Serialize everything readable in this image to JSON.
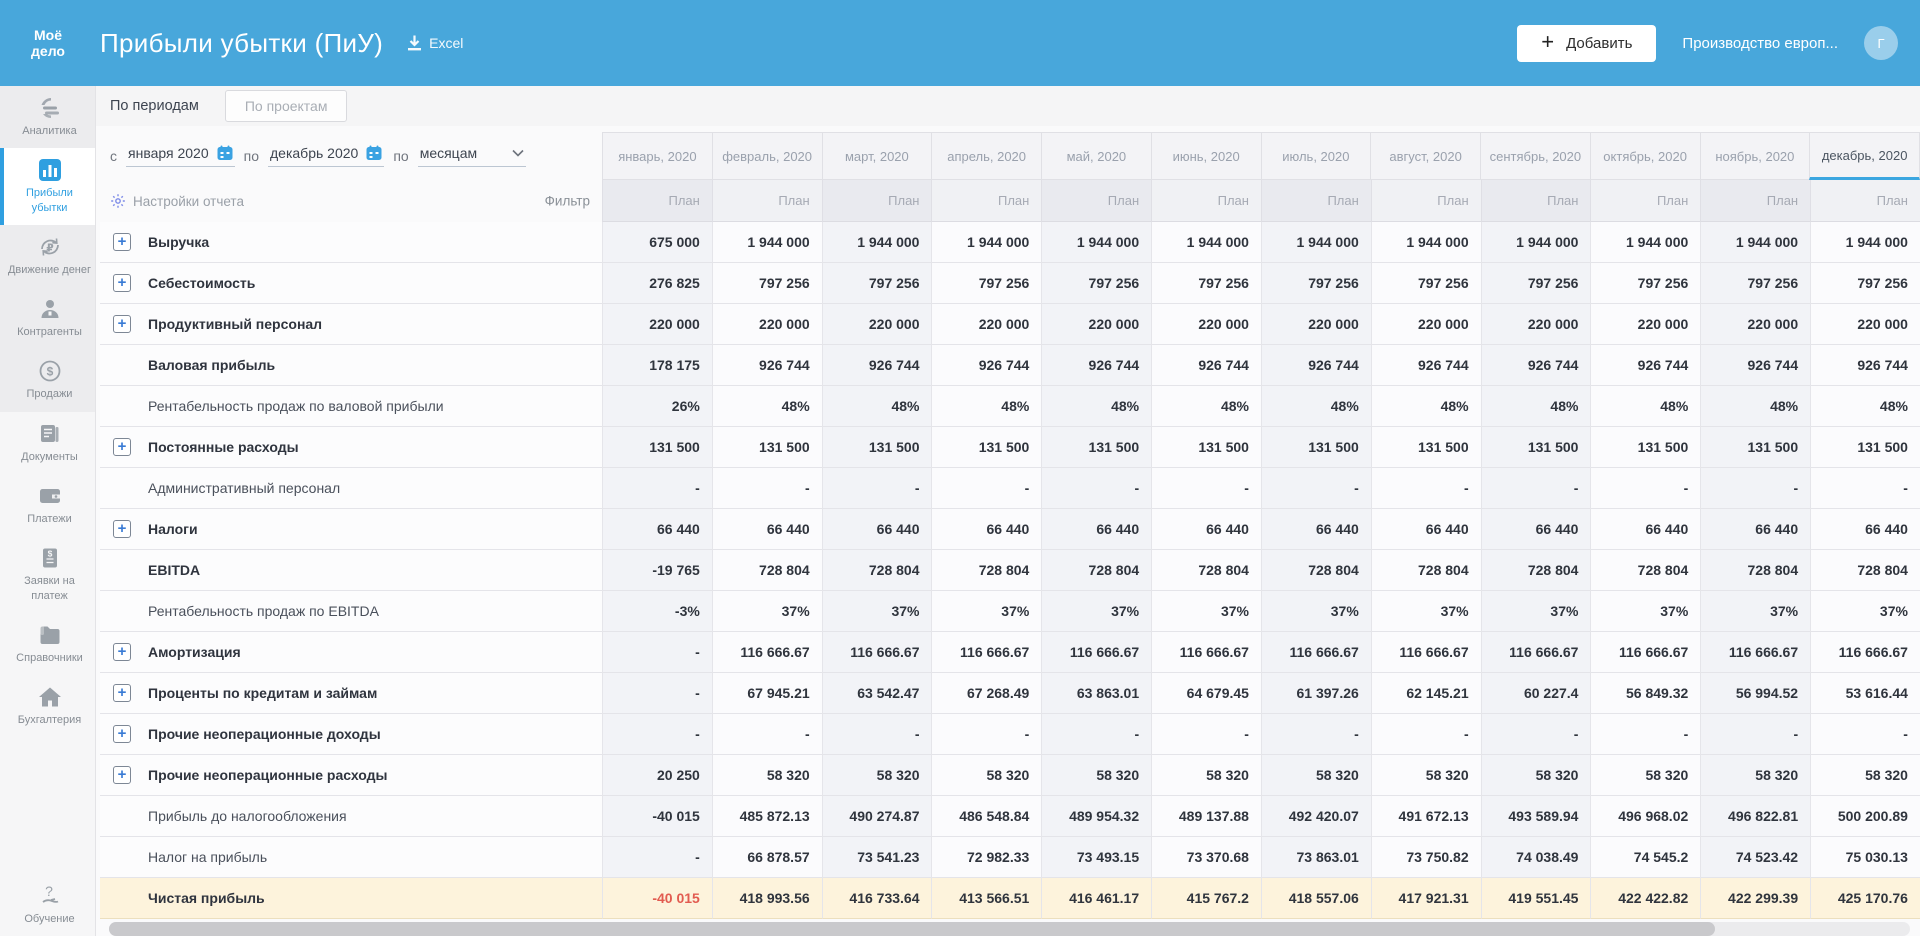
{
  "colors": {
    "header_blue": "#48a7db",
    "active_blue": "#2f9fe0",
    "selected_month_underline": "#3ba6e0",
    "negative_red": "#e25b50",
    "highlight_row_bg": "#fdf3dc"
  },
  "header": {
    "logo_line1": "Моё",
    "logo_line2": "дело",
    "title": "Прибыли убытки (ПиУ)",
    "excel_label": "Excel",
    "add_button_label": "Добавить",
    "company": "Производство европ...",
    "avatar_letter": "Г"
  },
  "sidebar": {
    "items": [
      {
        "id": "analytics",
        "label": "Аналитика",
        "icon": "analytics-icon",
        "group": 1,
        "active": false
      },
      {
        "id": "profit-loss",
        "label": "Прибыли убытки",
        "icon": "profit-loss-icon",
        "group": 1,
        "active": true
      },
      {
        "id": "cash-flow",
        "label": "Движение денег",
        "icon": "cash-flow-icon",
        "group": 1,
        "active": false
      },
      {
        "id": "contractors",
        "label": "Контрагенты",
        "icon": "contractors-icon",
        "group": 1,
        "active": false
      },
      {
        "id": "sales",
        "label": "Продажи",
        "icon": "sales-icon",
        "group": 1,
        "active": false
      },
      {
        "id": "documents",
        "label": "Документы",
        "icon": "documents-icon",
        "group": 2,
        "active": false
      },
      {
        "id": "payments",
        "label": "Платежи",
        "icon": "payments-icon",
        "group": 2,
        "active": false
      },
      {
        "id": "payment-requests",
        "label": "Заявки на платеж",
        "icon": "payment-request-icon",
        "group": 2,
        "active": false
      },
      {
        "id": "directories",
        "label": "Справочники",
        "icon": "directories-icon",
        "group": 2,
        "active": false
      },
      {
        "id": "accounting",
        "label": "Бухгалтерия",
        "icon": "accounting-icon",
        "group": 2,
        "active": false
      },
      {
        "id": "education",
        "label": "Обучение",
        "icon": "education-icon",
        "group": 3,
        "active": false
      }
    ]
  },
  "tabs": {
    "periods": "По периодам",
    "projects": "По проектам"
  },
  "filters": {
    "from_label": "с",
    "from_value": "января 2020",
    "to_label": "по",
    "to_value": "декабрь 2020",
    "group_label": "по",
    "group_value": "месяцам",
    "settings_label": "Настройки отчета",
    "filter_label": "Фильтр"
  },
  "table": {
    "plan_label": "План",
    "months": [
      "январь, 2020",
      "февраль, 2020",
      "март, 2020",
      "апрель, 2020",
      "май, 2020",
      "июнь, 2020",
      "июль, 2020",
      "август, 2020",
      "сентябрь, 2020",
      "октябрь, 2020",
      "ноябрь, 2020",
      "декабрь, 2020"
    ],
    "selected_month_index": 11,
    "rows": [
      {
        "label": "Выручка",
        "expandable": true,
        "bold": true,
        "highlight": false,
        "values": [
          "675 000",
          "1 944 000",
          "1 944 000",
          "1 944 000",
          "1 944 000",
          "1 944 000",
          "1 944 000",
          "1 944 000",
          "1 944 000",
          "1 944 000",
          "1 944 000",
          "1 944 000"
        ]
      },
      {
        "label": "Себестоимость",
        "expandable": true,
        "bold": true,
        "highlight": false,
        "values": [
          "276 825",
          "797 256",
          "797 256",
          "797 256",
          "797 256",
          "797 256",
          "797 256",
          "797 256",
          "797 256",
          "797 256",
          "797 256",
          "797 256"
        ]
      },
      {
        "label": "Продуктивный персонал",
        "expandable": true,
        "bold": true,
        "highlight": false,
        "values": [
          "220 000",
          "220 000",
          "220 000",
          "220 000",
          "220 000",
          "220 000",
          "220 000",
          "220 000",
          "220 000",
          "220 000",
          "220 000",
          "220 000"
        ]
      },
      {
        "label": "Валовая прибыль",
        "expandable": false,
        "bold": true,
        "highlight": false,
        "values": [
          "178 175",
          "926 744",
          "926 744",
          "926 744",
          "926 744",
          "926 744",
          "926 744",
          "926 744",
          "926 744",
          "926 744",
          "926 744",
          "926 744"
        ]
      },
      {
        "label": "Рентабельность продаж по валовой прибыли",
        "expandable": false,
        "bold": false,
        "highlight": false,
        "values": [
          "26%",
          "48%",
          "48%",
          "48%",
          "48%",
          "48%",
          "48%",
          "48%",
          "48%",
          "48%",
          "48%",
          "48%"
        ]
      },
      {
        "label": "Постоянные расходы",
        "expandable": true,
        "bold": true,
        "highlight": false,
        "values": [
          "131 500",
          "131 500",
          "131 500",
          "131 500",
          "131 500",
          "131 500",
          "131 500",
          "131 500",
          "131 500",
          "131 500",
          "131 500",
          "131 500"
        ]
      },
      {
        "label": "Административный персонал",
        "expandable": false,
        "bold": false,
        "highlight": false,
        "values": [
          "-",
          "-",
          "-",
          "-",
          "-",
          "-",
          "-",
          "-",
          "-",
          "-",
          "-",
          "-"
        ]
      },
      {
        "label": "Налоги",
        "expandable": true,
        "bold": true,
        "highlight": false,
        "values": [
          "66 440",
          "66 440",
          "66 440",
          "66 440",
          "66 440",
          "66 440",
          "66 440",
          "66 440",
          "66 440",
          "66 440",
          "66 440",
          "66 440"
        ]
      },
      {
        "label": "EBITDA",
        "expandable": false,
        "bold": true,
        "highlight": false,
        "values": [
          "-19 765",
          "728 804",
          "728 804",
          "728 804",
          "728 804",
          "728 804",
          "728 804",
          "728 804",
          "728 804",
          "728 804",
          "728 804",
          "728 804"
        ]
      },
      {
        "label": "Рентабельность продаж по EBITDA",
        "expandable": false,
        "bold": false,
        "highlight": false,
        "values": [
          "-3%",
          "37%",
          "37%",
          "37%",
          "37%",
          "37%",
          "37%",
          "37%",
          "37%",
          "37%",
          "37%",
          "37%"
        ]
      },
      {
        "label": "Амортизация",
        "expandable": true,
        "bold": true,
        "highlight": false,
        "values": [
          "-",
          "116 666.67",
          "116 666.67",
          "116 666.67",
          "116 666.67",
          "116 666.67",
          "116 666.67",
          "116 666.67",
          "116 666.67",
          "116 666.67",
          "116 666.67",
          "116 666.67"
        ]
      },
      {
        "label": "Проценты по кредитам и займам",
        "expandable": true,
        "bold": true,
        "highlight": false,
        "values": [
          "-",
          "67 945.21",
          "63 542.47",
          "67 268.49",
          "63 863.01",
          "64 679.45",
          "61 397.26",
          "62 145.21",
          "60 227.4",
          "56 849.32",
          "56 994.52",
          "53 616.44"
        ]
      },
      {
        "label": "Прочие неоперационные доходы",
        "expandable": true,
        "bold": true,
        "highlight": false,
        "values": [
          "-",
          "-",
          "-",
          "-",
          "-",
          "-",
          "-",
          "-",
          "-",
          "-",
          "-",
          "-"
        ]
      },
      {
        "label": "Прочие неоперационные расходы",
        "expandable": true,
        "bold": true,
        "highlight": false,
        "values": [
          "20 250",
          "58 320",
          "58 320",
          "58 320",
          "58 320",
          "58 320",
          "58 320",
          "58 320",
          "58 320",
          "58 320",
          "58 320",
          "58 320"
        ]
      },
      {
        "label": "Прибыль до налогообложения",
        "expandable": false,
        "bold": false,
        "highlight": false,
        "values": [
          "-40 015",
          "485 872.13",
          "490 274.87",
          "486 548.84",
          "489 954.32",
          "489 137.88",
          "492 420.07",
          "491 672.13",
          "493 589.94",
          "496 968.02",
          "496 822.81",
          "500 200.89"
        ]
      },
      {
        "label": "Налог на прибыль",
        "expandable": false,
        "bold": false,
        "highlight": false,
        "values": [
          "-",
          "66 878.57",
          "73 541.23",
          "72 982.33",
          "73 493.15",
          "73 370.68",
          "73 863.01",
          "73 750.82",
          "74 038.49",
          "74 545.2",
          "74 523.42",
          "75 030.13"
        ]
      },
      {
        "label": "Чистая прибыль",
        "expandable": false,
        "bold": true,
        "highlight": true,
        "red_indices": [
          0
        ],
        "values": [
          "-40 015",
          "418 993.56",
          "416 733.64",
          "413 566.51",
          "416 461.17",
          "415 767.2",
          "418 557.06",
          "417 921.31",
          "419 551.45",
          "422 422.82",
          "422 299.39",
          "425 170.76"
        ]
      }
    ]
  }
}
